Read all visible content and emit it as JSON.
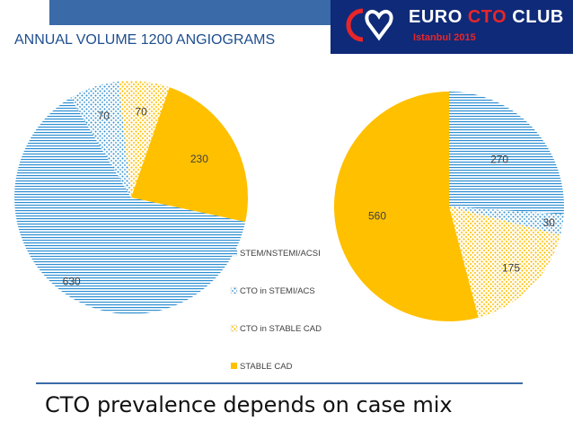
{
  "header": {
    "headline": "ANNUAL VOLUME 1200 ANGIOGRAMS",
    "logo": {
      "title_part1": "EURO",
      "title_part2": "CTO",
      "title_part3": "CLUB",
      "subtitle": "Istanbul 2015"
    }
  },
  "footer": {
    "title": "CTO prevalence depends on case mix"
  },
  "colors": {
    "blue": "#2e8fd2",
    "gold": "#ffc000",
    "header_bar": "#3a6aa8",
    "logo_bg": "#0f2a78",
    "logo_red": "#e8262a",
    "headline": "#1e4e8e"
  },
  "chart_data": [
    {
      "type": "pie",
      "categories": [
        "STEM/NSTEMI/ACSI",
        "CTO in STEMI/ACS",
        "CTO in STABLE CAD",
        "STABLE CAD"
      ],
      "values": [
        630,
        70,
        70,
        230
      ],
      "data_labels": [
        "630",
        "70",
        "70",
        "230"
      ],
      "legend": {
        "position": "bottom-right",
        "entries": [
          "STEM/NSTEMI/ACSI",
          "CTO in STEMI/ACS",
          "CTO in STABLE CAD",
          "STABLE CAD"
        ]
      }
    },
    {
      "type": "pie",
      "categories": [
        "STEM/NSTEMI/ACSI",
        "CTO in STEMI/ACS",
        "CTO in STABLE CAD",
        "STABLE CAD"
      ],
      "values": [
        270,
        30,
        175,
        560
      ],
      "data_labels": [
        "270",
        "30",
        "175",
        "560"
      ]
    }
  ]
}
